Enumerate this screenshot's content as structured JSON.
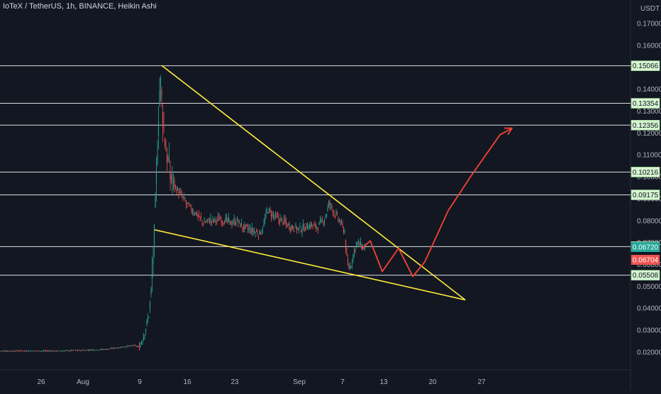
{
  "chart_data": {
    "type": "candlestick",
    "title": "IoTeX / TetherUS, 1h, BINANCE, Heikin Ashi",
    "price_unit": "USDT",
    "ylim": [
      0.0135,
      0.1755
    ],
    "y_tick_labels": [
      "0.17000",
      "0.16000",
      "0.14000",
      "0.13000",
      "0.12000",
      "0.11000",
      "0.10000",
      "0.09000",
      "0.08000",
      "0.07000",
      "0.06000",
      "0.05000",
      "0.04000",
      "0.03000",
      "0.02000"
    ],
    "x_tick_labels": [
      "26",
      "Aug",
      "9",
      "16",
      "23",
      "Sep",
      "7",
      "13",
      "20",
      "27"
    ],
    "horizontal_levels": [
      {
        "label": "0.15066",
        "value": 0.15066
      },
      {
        "label": "0.13354",
        "value": 0.13354
      },
      {
        "label": "0.12356",
        "value": 0.12356
      },
      {
        "label": "0.10216",
        "value": 0.10216
      },
      {
        "label": "0.09175",
        "value": 0.09175
      },
      {
        "label": "0.06814",
        "value": 0.06814
      },
      {
        "label": "0.05508",
        "value": 0.05508
      }
    ],
    "price_markers": [
      {
        "label": "0.06720",
        "value": 0.0672,
        "color": "#26a69a"
      },
      {
        "label": "0.06704",
        "value": 0.06704,
        "color": "#ef5350"
      }
    ],
    "price_path": [
      [
        0,
        0.0205
      ],
      [
        40,
        0.0206
      ],
      [
        80,
        0.0205
      ],
      [
        120,
        0.0209
      ],
      [
        150,
        0.0213
      ],
      [
        175,
        0.0225
      ],
      [
        190,
        0.023
      ],
      [
        196,
        0.0222
      ],
      [
        202,
        0.027
      ],
      [
        207,
        0.033
      ],
      [
        210,
        0.037
      ],
      [
        214,
        0.052
      ],
      [
        218,
        0.075
      ],
      [
        221,
        0.105
      ],
      [
        224,
        0.135
      ],
      [
        226,
        0.145
      ],
      [
        229,
        0.13
      ],
      [
        232,
        0.118
      ],
      [
        236,
        0.108
      ],
      [
        240,
        0.1
      ],
      [
        246,
        0.096
      ],
      [
        252,
        0.093
      ],
      [
        258,
        0.09
      ],
      [
        264,
        0.087
      ],
      [
        270,
        0.085
      ],
      [
        278,
        0.083
      ],
      [
        286,
        0.079
      ],
      [
        294,
        0.08
      ],
      [
        302,
        0.08
      ],
      [
        310,
        0.081
      ],
      [
        318,
        0.08
      ],
      [
        326,
        0.079
      ],
      [
        334,
        0.08
      ],
      [
        342,
        0.077
      ],
      [
        350,
        0.076
      ],
      [
        358,
        0.075
      ],
      [
        366,
        0.074
      ],
      [
        372,
        0.078
      ],
      [
        377,
        0.085
      ],
      [
        383,
        0.083
      ],
      [
        390,
        0.081
      ],
      [
        398,
        0.08
      ],
      [
        406,
        0.078
      ],
      [
        414,
        0.077
      ],
      [
        422,
        0.076
      ],
      [
        430,
        0.077
      ],
      [
        438,
        0.078
      ],
      [
        446,
        0.077
      ],
      [
        454,
        0.079
      ],
      [
        460,
        0.083
      ],
      [
        464,
        0.088
      ],
      [
        468,
        0.086
      ],
      [
        474,
        0.082
      ],
      [
        480,
        0.079
      ],
      [
        486,
        0.075
      ],
      [
        488,
        0.065
      ],
      [
        491,
        0.058
      ],
      [
        495,
        0.06
      ],
      [
        499,
        0.066
      ],
      [
        503,
        0.07
      ],
      [
        507,
        0.069
      ],
      [
        511,
        0.068
      ],
      [
        515,
        0.0672
      ]
    ],
    "support_line": [
      [
        218,
        0.0758
      ],
      [
        656,
        0.0438
      ]
    ],
    "resistance_line": [
      [
        228,
        0.1508
      ],
      [
        656,
        0.0438
      ]
    ],
    "projection_path": [
      [
        510,
        0.0672
      ],
      [
        522,
        0.0708
      ],
      [
        539,
        0.0568
      ],
      [
        562,
        0.0674
      ],
      [
        582,
        0.0545
      ],
      [
        599,
        0.0612
      ],
      [
        632,
        0.0846
      ],
      [
        665,
        0.1008
      ],
      [
        705,
        0.1192
      ],
      [
        722,
        0.1222
      ]
    ],
    "colors": {
      "up": "#26a69a",
      "down": "#ef5350",
      "trendline": "#ffeb3b",
      "projection": "#f44336",
      "level": "#ffffff",
      "bg": "#131722"
    }
  }
}
